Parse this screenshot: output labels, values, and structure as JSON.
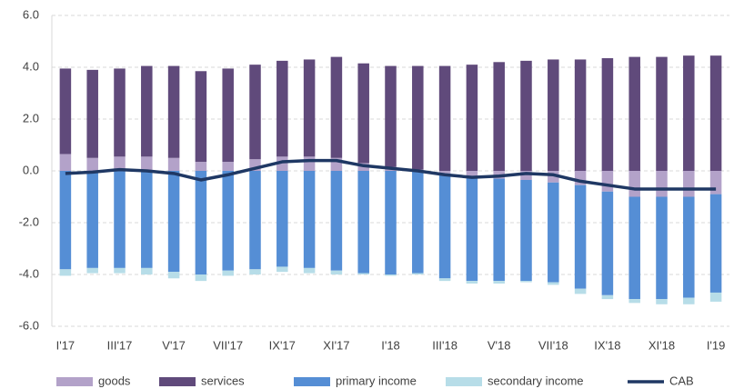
{
  "chart_data": {
    "type": "bar",
    "categories": [
      "I'17",
      null,
      "III'17",
      null,
      "V'17",
      null,
      "VII'17",
      null,
      "IX'17",
      null,
      "XI'17",
      null,
      "I'18",
      null,
      "III'18",
      null,
      "V'18",
      null,
      "VII'18",
      null,
      "IX'18",
      null,
      "XI'18",
      null,
      "I'19"
    ],
    "series": [
      {
        "name": "goods",
        "color": "#b3a2c9",
        "values": [
          0.65,
          0.5,
          0.55,
          0.55,
          0.5,
          0.35,
          0.35,
          0.45,
          0.55,
          0.55,
          0.5,
          0.3,
          0.15,
          0.05,
          -0.1,
          -0.2,
          -0.3,
          -0.35,
          -0.45,
          -0.55,
          -0.8,
          -1.0,
          -1.0,
          -1.0,
          -0.9
        ]
      },
      {
        "name": "services",
        "color": "#604a7b",
        "values": [
          3.3,
          3.4,
          3.4,
          3.5,
          3.55,
          3.5,
          3.6,
          3.65,
          3.7,
          3.75,
          3.9,
          3.85,
          3.9,
          4.0,
          4.05,
          4.1,
          4.2,
          4.25,
          4.3,
          4.3,
          4.35,
          4.4,
          4.4,
          4.45,
          4.45
        ]
      },
      {
        "name": "primary income",
        "color": "#558ed5",
        "values": [
          -3.8,
          -3.75,
          -3.75,
          -3.75,
          -3.9,
          -4.0,
          -3.85,
          -3.8,
          -3.7,
          -3.75,
          -3.85,
          -3.95,
          -4.0,
          -3.95,
          -4.05,
          -4.05,
          -3.95,
          -3.9,
          -3.85,
          -4.0,
          -4.0,
          -3.95,
          -3.95,
          -3.9,
          -3.8
        ]
      },
      {
        "name": "secondary income",
        "color": "#b7dde8",
        "values": [
          -0.25,
          -0.2,
          -0.2,
          -0.25,
          -0.25,
          -0.25,
          -0.2,
          -0.2,
          -0.2,
          -0.2,
          -0.15,
          -0.05,
          -0.05,
          -0.05,
          -0.1,
          -0.1,
          -0.1,
          -0.05,
          -0.1,
          -0.2,
          -0.15,
          -0.15,
          -0.2,
          -0.25,
          -0.35
        ]
      },
      {
        "name": "CAB",
        "type": "line",
        "color": "#1f3864",
        "values": [
          -0.1,
          -0.05,
          0.05,
          0.0,
          -0.1,
          -0.35,
          -0.15,
          0.1,
          0.35,
          0.4,
          0.4,
          0.2,
          0.1,
          0.0,
          -0.15,
          -0.25,
          -0.2,
          -0.1,
          -0.15,
          -0.4,
          -0.55,
          -0.7,
          -0.7,
          -0.7,
          -0.7
        ]
      }
    ],
    "ylim": [
      -6,
      6
    ],
    "yticks": [
      {
        "value": -6,
        "label": "-6.0"
      },
      {
        "value": -4,
        "label": "-4.0"
      },
      {
        "value": -2,
        "label": "-2.0"
      },
      {
        "value": 0,
        "label": "0.0"
      },
      {
        "value": 2,
        "label": "2.0"
      },
      {
        "value": 4,
        "label": "4.0"
      },
      {
        "value": 6,
        "label": "6.0"
      }
    ],
    "grid": true,
    "stacked": true,
    "legend": "bottom"
  }
}
